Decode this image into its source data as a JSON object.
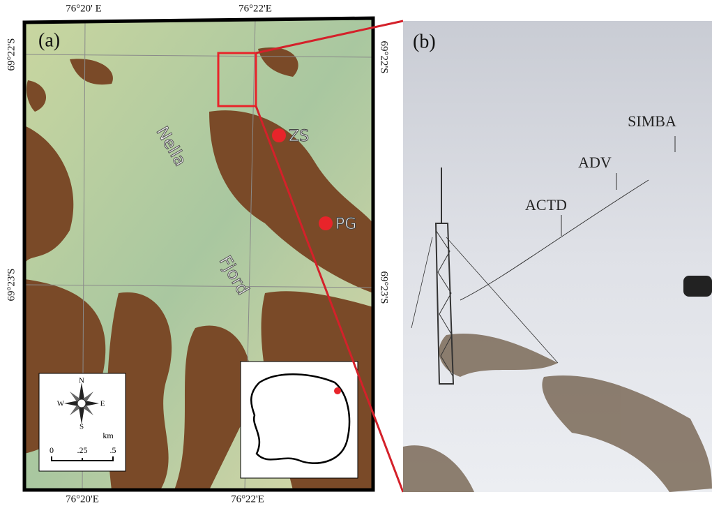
{
  "panel_a": {
    "label": "(a)",
    "top_labels": [
      "76°20' E",
      "76°22'E"
    ],
    "bottom_labels": [
      "76°20'E",
      "76°22'E"
    ],
    "left_labels": [
      "69°22'S",
      "69°23'S"
    ],
    "right_labels": [
      "69°22'S",
      "69°23'S"
    ],
    "place_labels": [
      "Nella",
      "Fjord"
    ],
    "stations": [
      "ZS",
      "PG"
    ],
    "compass": {
      "north": "N",
      "south": "S",
      "east": "E",
      "west": "W"
    },
    "scale": {
      "unit": "km",
      "ticks": [
        "0",
        ".25",
        ".5"
      ]
    }
  },
  "panel_b": {
    "label": "(b)",
    "instruments": [
      "SIMBA",
      "ADV",
      "ACTD"
    ]
  }
}
